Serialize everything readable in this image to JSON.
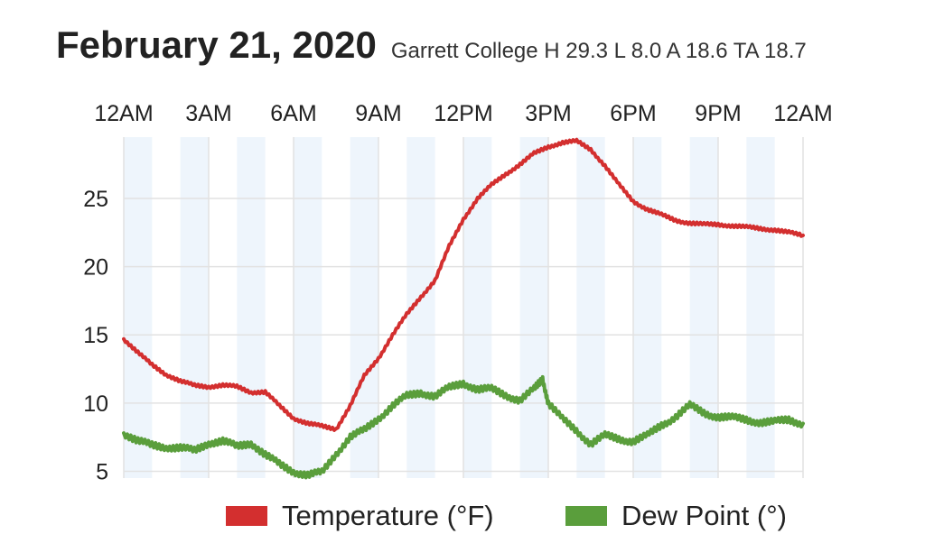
{
  "chart_data": {
    "type": "line",
    "title": "February 21, 2020",
    "subtitle": "Garrett College H 29.3 L 8.0 A 18.6 TA  18.7",
    "x_tick_labels": [
      "12AM",
      "3AM",
      "6AM",
      "9AM",
      "12PM",
      "3PM",
      "6PM",
      "9PM",
      "12AM"
    ],
    "y_ticks": [
      5,
      10,
      15,
      20,
      25
    ],
    "xlim_hours": [
      0,
      24
    ],
    "ylim": [
      4.5,
      29.5
    ],
    "grid": true,
    "legend_position": "bottom",
    "series": [
      {
        "name": "Temperature (°F)",
        "color": "#d32f2f",
        "x_hours": [
          0,
          0.5,
          1,
          1.5,
          2,
          2.5,
          3,
          3.5,
          4,
          4.5,
          5,
          5.5,
          6,
          6.5,
          7,
          7.5,
          8,
          8.5,
          9,
          9.5,
          10,
          10.5,
          11,
          11.5,
          12,
          12.5,
          13,
          13.5,
          14,
          14.5,
          15,
          15.5,
          16,
          16.5,
          17,
          17.5,
          18,
          18.5,
          19,
          19.5,
          20,
          20.5,
          21,
          21.5,
          22,
          22.5,
          23,
          23.5,
          24
        ],
        "values": [
          14.7,
          13.7,
          12.8,
          12.1,
          11.6,
          11.3,
          11.2,
          11.3,
          11.2,
          10.8,
          10.8,
          9.8,
          8.9,
          8.5,
          8.3,
          8.1,
          9.8,
          12.0,
          13.3,
          15.0,
          16.5,
          17.8,
          19.0,
          21.5,
          23.5,
          25.0,
          26.0,
          26.8,
          27.5,
          28.3,
          28.8,
          29.1,
          29.2,
          28.6,
          27.4,
          26.0,
          24.8,
          24.2,
          23.8,
          23.4,
          23.2,
          23.1,
          23.1,
          23.0,
          22.9,
          22.8,
          22.7,
          22.5,
          22.3
        ]
      },
      {
        "name": "Dew Point (°)",
        "color": "#5a9e3c",
        "x_hours": [
          0,
          0.5,
          1,
          1.5,
          2,
          2.5,
          3,
          3.5,
          4,
          4.5,
          5,
          5.5,
          6,
          6.5,
          7,
          7.5,
          8,
          8.5,
          9,
          9.5,
          10,
          10.5,
          11,
          11.5,
          12,
          12.5,
          13,
          13.5,
          14,
          14.5,
          14.8,
          15,
          15.5,
          16,
          16.5,
          17,
          17.5,
          18,
          18.5,
          19,
          19.5,
          20,
          20.5,
          21,
          21.5,
          22,
          22.5,
          23,
          23.5,
          24
        ],
        "values": [
          7.8,
          7.2,
          6.9,
          6.8,
          6.7,
          6.5,
          7.1,
          7.2,
          6.8,
          7.1,
          6.2,
          5.5,
          5.0,
          4.7,
          4.9,
          6.3,
          7.5,
          8.0,
          8.9,
          9.8,
          10.5,
          10.8,
          10.5,
          11.1,
          11.5,
          11.0,
          11.0,
          10.6,
          10.2,
          11.0,
          11.8,
          10.0,
          8.8,
          8.0,
          7.0,
          7.6,
          7.4,
          7.2,
          7.6,
          8.4,
          9.0,
          9.8,
          9.3,
          9.0,
          8.9,
          8.8,
          8.6,
          8.6,
          8.8,
          8.5
        ]
      }
    ]
  }
}
